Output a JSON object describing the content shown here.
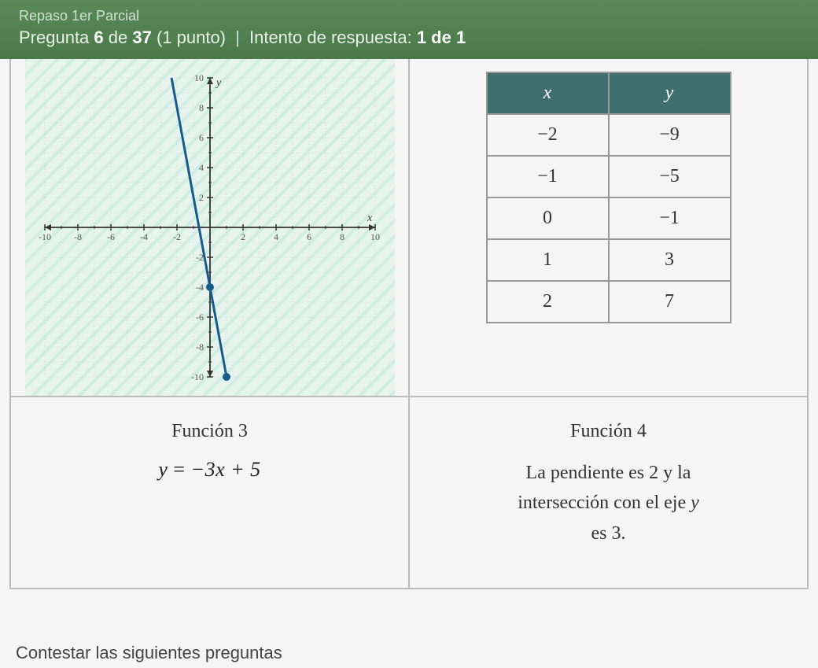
{
  "header": {
    "breadcrumb": "Repaso 1er Parcial",
    "question_prefix": "Pregunta ",
    "question_num": "6",
    "question_of": " de ",
    "question_total": "37",
    "points": " (1 punto)",
    "attempt_label": "Intento de respuesta: ",
    "attempt_value": "1 de 1"
  },
  "function3": {
    "title": "Función 3",
    "equation_y": "y",
    "equation_eq": " = ",
    "equation_rhs": "−3x + 5"
  },
  "function4": {
    "title": "Función 4",
    "desc_line1_a": "La pendiente es ",
    "desc_line1_num": "2",
    "desc_line1_b": " y la",
    "desc_line2_a": "intersección con el eje ",
    "desc_line2_var": "y",
    "desc_line3_a": "es ",
    "desc_line3_num": "3",
    "desc_line3_b": "."
  },
  "table": {
    "header_x": "x",
    "header_y": "y",
    "rows": [
      {
        "x": "−2",
        "y": "−9"
      },
      {
        "x": "−1",
        "y": "−5"
      },
      {
        "x": "0",
        "y": "−1"
      },
      {
        "x": "1",
        "y": "3"
      },
      {
        "x": "2",
        "y": "7"
      }
    ],
    "header_bg": "#3f6e70",
    "header_fg": "#ffffff",
    "border_color": "#999999",
    "cell_fontsize": 24
  },
  "chart": {
    "type": "line",
    "xlim": [
      -10,
      10
    ],
    "ylim": [
      -10,
      10
    ],
    "xtick_step": 2,
    "ytick_step": 2,
    "minor_tick_step": 1,
    "grid_color": "#bdb9b5",
    "axis_color": "#333333",
    "background_color": "#eef6f2",
    "line_color": "#165a8e",
    "line_width": 3,
    "point_color": "#165a8e",
    "point_radius": 5,
    "points": [
      {
        "x": 0,
        "y": -4
      },
      {
        "x": 1,
        "y": -10
      }
    ],
    "line_x1": -2.33,
    "line_y1": 10,
    "line_x2": 1,
    "line_y2": -10,
    "axis_label_x": "x",
    "axis_label_y": "y",
    "tick_labels_x": [
      "-10",
      "-8",
      "-6",
      "-4",
      "-2",
      "2",
      "4",
      "6",
      "8",
      "10"
    ],
    "tick_labels_y": [
      "-10",
      "-8",
      "-6",
      "-4",
      "-2",
      "2",
      "4",
      "6",
      "8",
      "10"
    ],
    "tick_label_fontsize": 12,
    "tick_label_color": "#555555",
    "label_fontsize": 14
  },
  "footer": "Contestar las siguientes preguntas"
}
